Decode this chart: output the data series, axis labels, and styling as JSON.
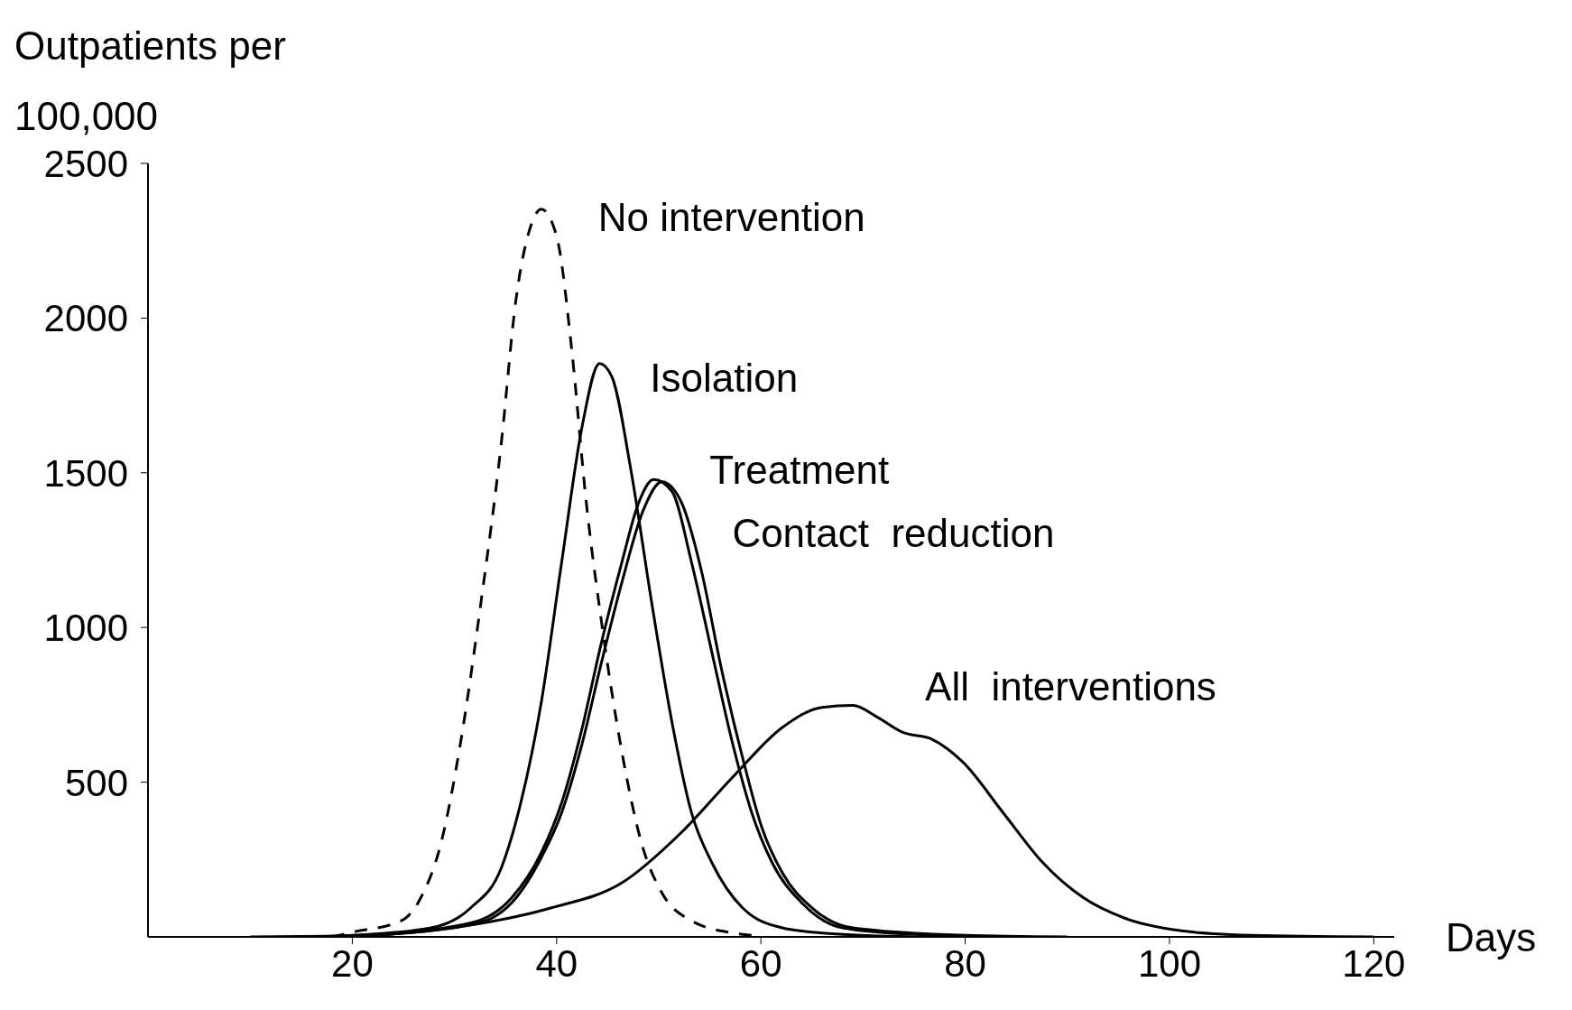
{
  "chart_data": {
    "type": "line",
    "xlabel": "Days",
    "ylabel": "Outpatients per 100,000",
    "xlim": [
      0,
      122
    ],
    "xticks": [
      20,
      40,
      60,
      80,
      100,
      120
    ],
    "ylim": [
      0,
      2500
    ],
    "yticks": [
      500,
      1000,
      1500,
      2000,
      2500
    ],
    "marker": "none",
    "series": [
      {
        "name": "No intervention",
        "color": "#000000",
        "line_style": "dashed",
        "x": [
          18,
          20,
          24.8,
          26.7,
          28.7,
          30.6,
          32.6,
          34.6,
          36,
          37.5,
          38.5,
          40,
          41.5,
          42.9,
          44.4,
          46.4,
          48.3,
          50.3,
          53.2,
          57.2,
          60
        ],
        "values": [
          0,
          15,
          52,
          126,
          305,
          628,
          1082,
          1600,
          2054,
          2300,
          2352,
          2265,
          1892,
          1406,
          1017,
          596,
          305,
          143,
          52,
          13,
          3
        ]
      },
      {
        "name": "Isolation",
        "color": "#000000",
        "line_style": "solid",
        "x": [
          15,
          20,
          27.7,
          31.6,
          34.6,
          36.5,
          38.5,
          40.5,
          42.5,
          44.2,
          45.4,
          47.3,
          49.3,
          51.3,
          53.2,
          55.2,
          58.2,
          62.1,
          67,
          75
        ],
        "values": [
          0,
          5,
          29,
          94,
          224,
          434,
          758,
          1212,
          1650,
          1853,
          1811,
          1504,
          1082,
          693,
          402,
          240,
          94,
          29,
          10,
          0
        ]
      },
      {
        "name": "Treatment",
        "color": "#000000",
        "line_style": "solid",
        "x": [
          15,
          20,
          31.6,
          35.6,
          38.5,
          40.5,
          42.4,
          44.4,
          46.4,
          48,
          49.5,
          51.3,
          53.2,
          55.2,
          57.2,
          59.1,
          61.1,
          64,
          68,
          75,
          85
        ],
        "values": [
          0,
          3,
          45,
          126,
          272,
          434,
          661,
          953,
          1212,
          1400,
          1478,
          1439,
          1212,
          920,
          629,
          402,
          240,
          110,
          29,
          8,
          0
        ]
      },
      {
        "name": "Contact  reduction",
        "color": "#000000",
        "line_style": "solid",
        "x": [
          15,
          20,
          31.6,
          35.6,
          38.5,
          40.5,
          42.4,
          44.4,
          46.4,
          48.5,
          50.3,
          52.2,
          54.2,
          56.1,
          58.2,
          60.1,
          62.1,
          65,
          69,
          80,
          90
        ],
        "values": [
          0,
          3,
          39,
          110,
          256,
          402,
          612,
          888,
          1147,
          1380,
          1471,
          1406,
          1180,
          872,
          580,
          353,
          207,
          94,
          29,
          5,
          0
        ]
      },
      {
        "name": "All  interventions",
        "color": "#000000",
        "line_style": "solid",
        "x": [
          10,
          20,
          29.7,
          39.5,
          46.4,
          52.2,
          57.2,
          62.1,
          66,
          69,
          71.4,
          73.9,
          76.8,
          79.8,
          83.7,
          87.6,
          91.6,
          95.5,
          101.4,
          108,
          120
        ],
        "values": [
          0,
          3,
          29,
          94,
          175,
          337,
          515,
          677,
          742,
          748,
          710,
          661,
          638,
          564,
          402,
          240,
          126,
          62,
          19,
          5,
          0
        ]
      }
    ]
  }
}
